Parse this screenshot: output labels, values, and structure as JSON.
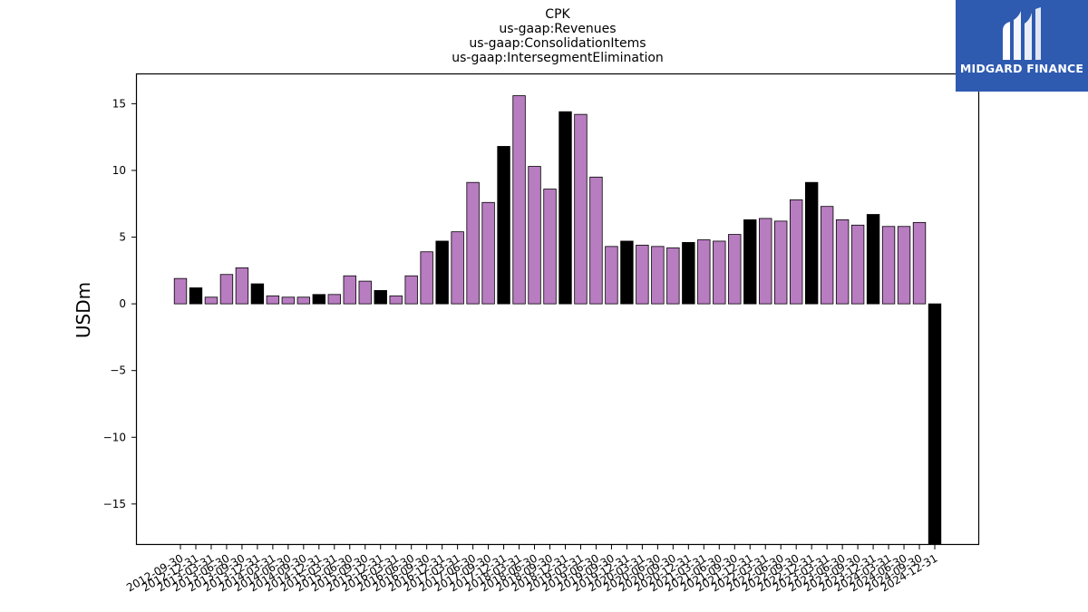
{
  "brand": {
    "name": "MIDGARD FINANCE",
    "bg_color": "#2e5bb0"
  },
  "chart_data": {
    "type": "bar",
    "title": [
      "CPK",
      "us-gaap:Revenues",
      "us-gaap:ConsolidationItems",
      "us-gaap:IntersegmentElimination"
    ],
    "ylabel": "USDm",
    "xlabel": "",
    "ylim": [
      -18,
      17.2
    ],
    "yticks": [
      -15,
      -10,
      -5,
      0,
      5,
      10,
      15
    ],
    "colors": {
      "quarter": "#b87cc0",
      "year_end": "#000000"
    },
    "categories": [
      "2012-09-30",
      "2012-12-31",
      "2013-03-31",
      "2013-06-30",
      "2013-09-30",
      "2013-12-31",
      "2014-03-31",
      "2014-06-30",
      "2014-09-30",
      "2014-12-31",
      "2015-03-31",
      "2015-06-30",
      "2015-09-30",
      "2015-12-31",
      "2016-03-31",
      "2016-06-30",
      "2016-09-30",
      "2016-12-31",
      "2017-03-31",
      "2017-06-30",
      "2017-09-30",
      "2017-12-31",
      "2018-03-31",
      "2018-06-30",
      "2018-09-30",
      "2018-12-31",
      "2019-03-31",
      "2019-06-30",
      "2019-09-30",
      "2019-12-31",
      "2020-03-31",
      "2020-06-30",
      "2020-09-30",
      "2020-12-31",
      "2021-03-31",
      "2021-06-30",
      "2021-09-30",
      "2021-12-31",
      "2022-03-31",
      "2022-06-30",
      "2022-09-30",
      "2022-12-31",
      "2023-03-31",
      "2023-06-30",
      "2023-09-30",
      "2023-12-31",
      "2024-03-31",
      "2024-06-30",
      "2024-09-30",
      "2024-12-31"
    ],
    "values": [
      1.9,
      1.2,
      0.5,
      2.2,
      2.7,
      1.5,
      0.6,
      0.5,
      0.5,
      0.7,
      0.7,
      2.1,
      1.7,
      1.0,
      0.6,
      2.1,
      3.9,
      4.7,
      5.4,
      9.1,
      7.6,
      11.8,
      15.6,
      10.3,
      8.6,
      14.4,
      14.2,
      9.5,
      4.3,
      4.7,
      4.4,
      4.3,
      4.2,
      4.6,
      4.8,
      4.7,
      5.2,
      6.3,
      6.4,
      6.2,
      7.8,
      9.1,
      7.3,
      6.3,
      5.9,
      6.7,
      5.8,
      5.8,
      6.1,
      -18.0
    ],
    "year_end": [
      false,
      true,
      false,
      false,
      false,
      true,
      false,
      false,
      false,
      true,
      false,
      false,
      false,
      true,
      false,
      false,
      false,
      true,
      false,
      false,
      false,
      true,
      false,
      false,
      false,
      true,
      false,
      false,
      false,
      true,
      false,
      false,
      false,
      true,
      false,
      false,
      false,
      true,
      false,
      false,
      false,
      true,
      false,
      false,
      false,
      true,
      false,
      false,
      false,
      true
    ]
  }
}
